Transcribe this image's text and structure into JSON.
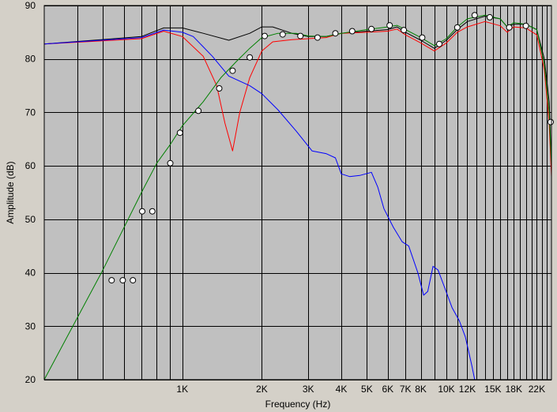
{
  "chart_data": {
    "type": "line",
    "title": "",
    "xlabel": "Frequency (Hz)",
    "ylabel": "Amplitude (dB)",
    "x_scale": "log",
    "xlim": [
      300,
      25000
    ],
    "ylim": [
      20,
      90
    ],
    "grid": true,
    "legend": "none",
    "background_color": "#c0c0c0",
    "y_ticks": [
      {
        "value": 20,
        "label": "20"
      },
      {
        "value": 30,
        "label": "30"
      },
      {
        "value": 40,
        "label": "40"
      },
      {
        "value": 50,
        "label": "50"
      },
      {
        "value": 60,
        "label": "60"
      },
      {
        "value": 70,
        "label": "70"
      },
      {
        "value": 80,
        "label": "80"
      },
      {
        "value": 90,
        "label": "90"
      }
    ],
    "x_ticks": [
      {
        "value": 1000,
        "label": "1K"
      },
      {
        "value": 2000,
        "label": "2K"
      },
      {
        "value": 3000,
        "label": "3K"
      },
      {
        "value": 4000,
        "label": "4K"
      },
      {
        "value": 5000,
        "label": "5K"
      },
      {
        "value": 6000,
        "label": "6K"
      },
      {
        "value": 7000,
        "label": "7K"
      },
      {
        "value": 8000,
        "label": "8K"
      },
      {
        "value": 10000,
        "label": "10K"
      },
      {
        "value": 12000,
        "label": "12K"
      },
      {
        "value": 15000,
        "label": "15K"
      },
      {
        "value": 18000,
        "label": "18K"
      },
      {
        "value": 22000,
        "label": "22K"
      }
    ],
    "x_minor_grid": [
      400,
      500,
      600,
      700,
      800,
      900,
      1000,
      2000,
      3000,
      4000,
      5000,
      6000,
      7000,
      8000,
      9000,
      10000,
      11000,
      12000,
      13000,
      14000,
      15000,
      16000,
      17000,
      18000,
      19000,
      20000,
      21000,
      22000,
      23000,
      24000
    ],
    "series": [
      {
        "color": "#000000",
        "points": [
          [
            300,
            82.8
          ],
          [
            700,
            84.2
          ],
          [
            850,
            85.8
          ],
          [
            1000,
            85.8
          ],
          [
            1200,
            84.8
          ],
          [
            1500,
            83.5
          ],
          [
            1800,
            84.8
          ],
          [
            2000,
            86.0
          ],
          [
            2200,
            86.0
          ],
          [
            2600,
            84.8
          ],
          [
            3000,
            84.2
          ],
          [
            3500,
            84.2
          ],
          [
            4000,
            84.8
          ],
          [
            5000,
            85.2
          ],
          [
            6000,
            85.5
          ],
          [
            6500,
            86.0
          ],
          [
            7000,
            85.0
          ],
          [
            8000,
            83.5
          ],
          [
            9000,
            82.0
          ],
          [
            10000,
            83.5
          ],
          [
            11000,
            85.5
          ],
          [
            12000,
            87.0
          ],
          [
            14000,
            88.0
          ],
          [
            16000,
            87.5
          ],
          [
            17000,
            86.0
          ],
          [
            18000,
            86.5
          ],
          [
            20000,
            86.5
          ],
          [
            22000,
            85.5
          ],
          [
            23500,
            80.0
          ],
          [
            24500,
            72.0
          ],
          [
            25000,
            60.0
          ]
        ]
      },
      {
        "color": "#ff0000",
        "points": [
          [
            300,
            82.8
          ],
          [
            700,
            83.8
          ],
          [
            850,
            85.2
          ],
          [
            1000,
            84.2
          ],
          [
            1200,
            80.5
          ],
          [
            1350,
            75.0
          ],
          [
            1450,
            68.0
          ],
          [
            1550,
            62.8
          ],
          [
            1650,
            70.0
          ],
          [
            1800,
            76.5
          ],
          [
            2000,
            81.5
          ],
          [
            2200,
            83.2
          ],
          [
            2600,
            83.6
          ],
          [
            3000,
            83.8
          ],
          [
            3500,
            84.0
          ],
          [
            4000,
            84.8
          ],
          [
            5000,
            85.0
          ],
          [
            6000,
            85.2
          ],
          [
            6500,
            85.6
          ],
          [
            7000,
            84.5
          ],
          [
            8000,
            83.0
          ],
          [
            9000,
            81.5
          ],
          [
            10000,
            83.0
          ],
          [
            11000,
            85.0
          ],
          [
            12000,
            86.0
          ],
          [
            14000,
            87.0
          ],
          [
            16000,
            86.2
          ],
          [
            17000,
            85.0
          ],
          [
            18000,
            86.0
          ],
          [
            20000,
            85.8
          ],
          [
            22000,
            84.5
          ],
          [
            23500,
            78.0
          ],
          [
            24500,
            68.0
          ],
          [
            25000,
            58.0
          ]
        ]
      },
      {
        "color": "#0000ff",
        "points": [
          [
            300,
            82.8
          ],
          [
            700,
            84.0
          ],
          [
            850,
            85.4
          ],
          [
            1000,
            85.0
          ],
          [
            1100,
            84.2
          ],
          [
            1300,
            80.5
          ],
          [
            1500,
            76.8
          ],
          [
            1800,
            75.0
          ],
          [
            2000,
            73.5
          ],
          [
            2300,
            70.5
          ],
          [
            2700,
            66.5
          ],
          [
            3100,
            62.8
          ],
          [
            3500,
            62.3
          ],
          [
            3800,
            61.5
          ],
          [
            4000,
            58.5
          ],
          [
            4300,
            58.0
          ],
          [
            4700,
            58.2
          ],
          [
            5200,
            58.8
          ],
          [
            5500,
            56.0
          ],
          [
            5800,
            52.0
          ],
          [
            6300,
            48.5
          ],
          [
            6800,
            45.8
          ],
          [
            7200,
            45.0
          ],
          [
            7800,
            40.0
          ],
          [
            8200,
            35.8
          ],
          [
            8500,
            36.5
          ],
          [
            8900,
            41.2
          ],
          [
            9300,
            40.5
          ],
          [
            9800,
            37.5
          ],
          [
            10500,
            33.5
          ],
          [
            11200,
            31.0
          ],
          [
            11800,
            28.0
          ],
          [
            12500,
            22.5
          ],
          [
            12800,
            20.0
          ]
        ]
      },
      {
        "color": "#008000",
        "points": [
          [
            300,
            20.0
          ],
          [
            500,
            40.5
          ],
          [
            700,
            55.0
          ],
          [
            800,
            60.5
          ],
          [
            900,
            64.0
          ],
          [
            1000,
            67.5
          ],
          [
            1200,
            72.0
          ],
          [
            1400,
            76.5
          ],
          [
            1600,
            79.5
          ],
          [
            1800,
            82.0
          ],
          [
            2000,
            84.0
          ],
          [
            2300,
            84.8
          ],
          [
            2700,
            84.8
          ],
          [
            3000,
            84.3
          ],
          [
            3500,
            84.2
          ],
          [
            4000,
            84.8
          ],
          [
            5000,
            85.5
          ],
          [
            6000,
            86.0
          ],
          [
            6500,
            86.3
          ],
          [
            7000,
            85.5
          ],
          [
            8000,
            84.0
          ],
          [
            9000,
            82.5
          ],
          [
            10000,
            83.8
          ],
          [
            11000,
            86.0
          ],
          [
            12000,
            87.5
          ],
          [
            14000,
            88.2
          ],
          [
            16000,
            87.5
          ],
          [
            17000,
            86.0
          ],
          [
            18000,
            86.8
          ],
          [
            20000,
            86.5
          ],
          [
            22000,
            85.5
          ],
          [
            23500,
            79.0
          ],
          [
            24500,
            70.0
          ],
          [
            25000,
            60.0
          ]
        ]
      }
    ],
    "markers": [
      [
        540,
        38.6
      ],
      [
        595,
        38.6
      ],
      [
        650,
        38.6
      ],
      [
        705,
        51.5
      ],
      [
        770,
        51.5
      ],
      [
        900,
        60.5
      ],
      [
        980,
        66.2
      ],
      [
        1150,
        70.3
      ],
      [
        1380,
        74.5
      ],
      [
        1550,
        77.8
      ],
      [
        1800,
        80.3
      ],
      [
        2050,
        84.3
      ],
      [
        2400,
        84.6
      ],
      [
        2800,
        84.3
      ],
      [
        3250,
        84.0
      ],
      [
        3800,
        84.8
      ],
      [
        4400,
        85.2
      ],
      [
        5200,
        85.6
      ],
      [
        6100,
        86.3
      ],
      [
        6900,
        85.4
      ],
      [
        8100,
        84.0
      ],
      [
        9400,
        82.8
      ],
      [
        11000,
        85.9
      ],
      [
        12800,
        88.2
      ],
      [
        14600,
        87.8
      ],
      [
        17300,
        85.9
      ],
      [
        20000,
        86.2
      ],
      [
        25000,
        68.2
      ]
    ]
  }
}
